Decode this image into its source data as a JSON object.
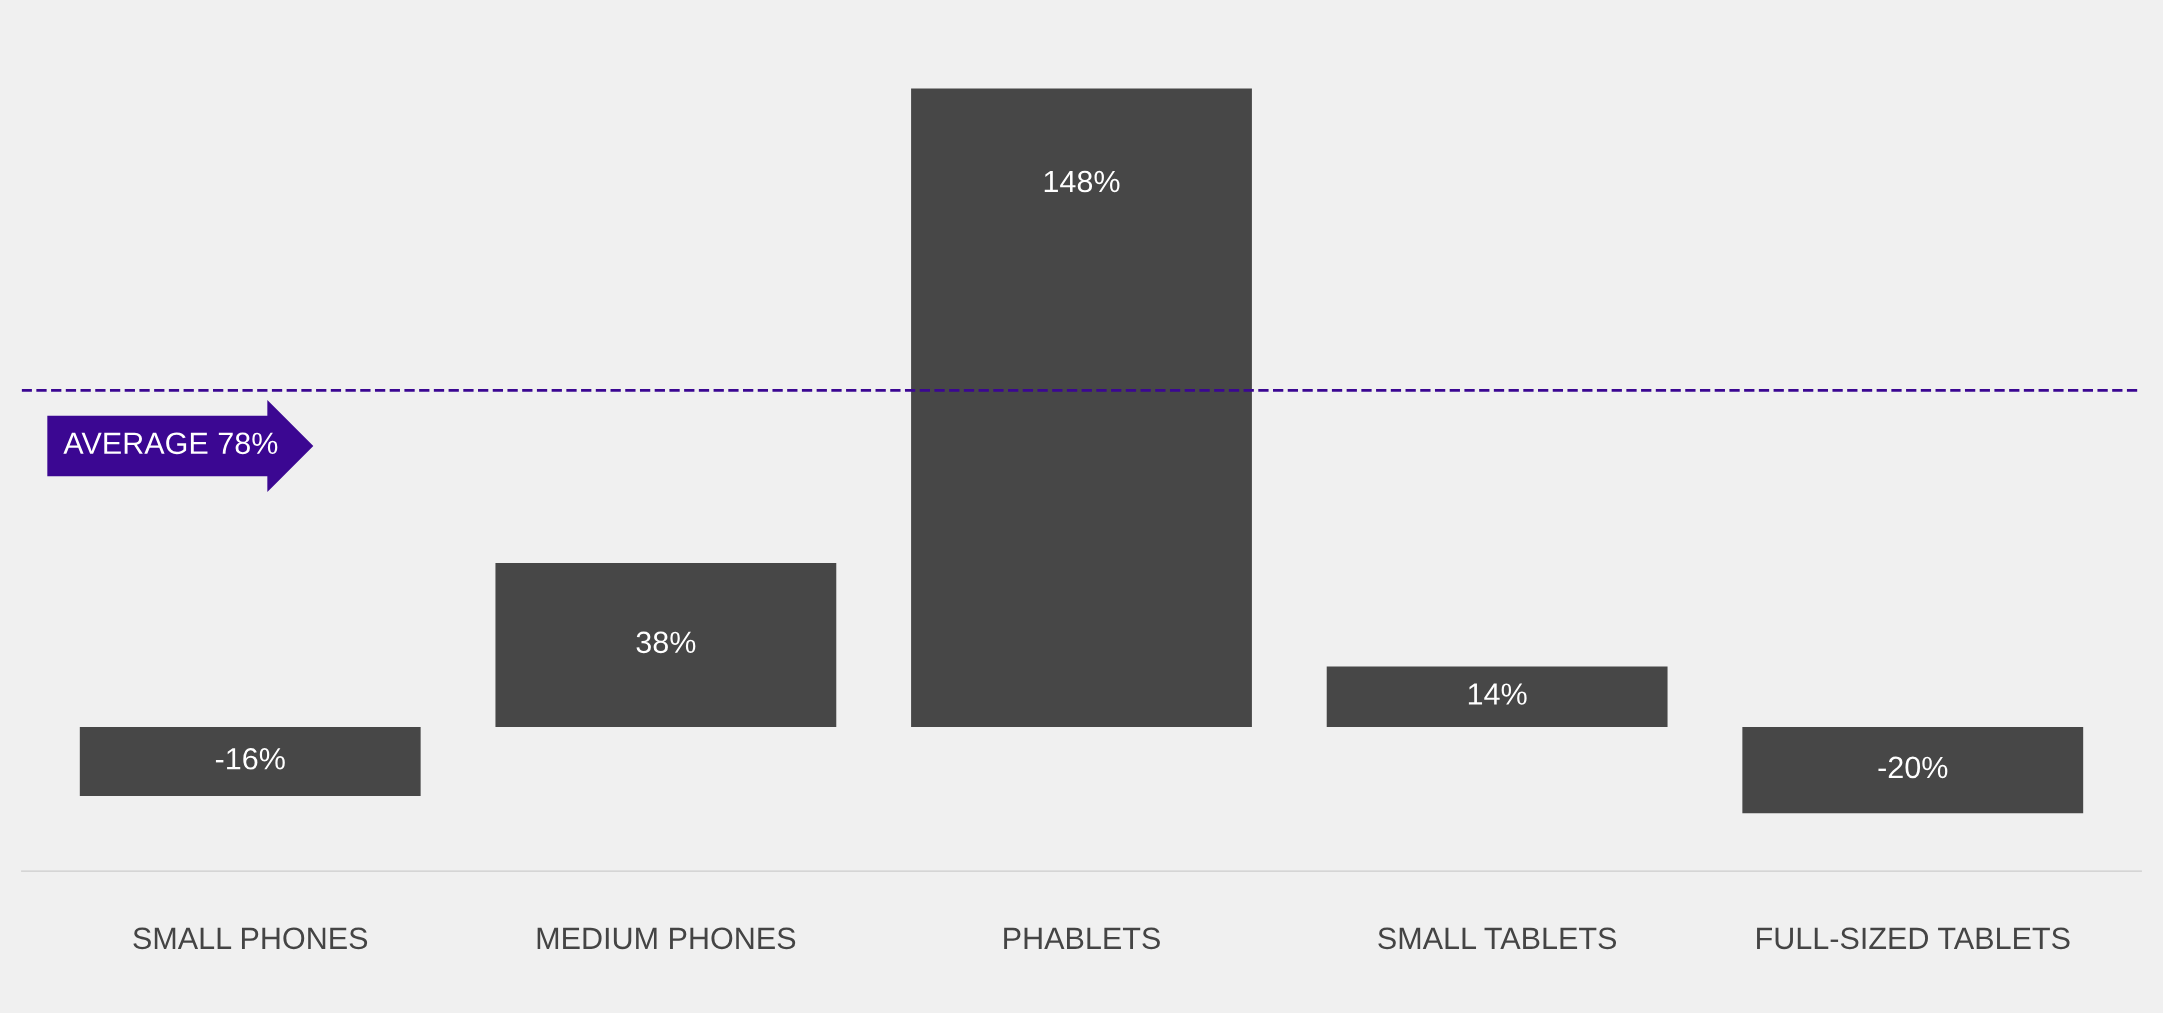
{
  "chart_data": {
    "type": "bar",
    "categories": [
      "SMALL PHONES",
      "MEDIUM PHONES",
      "PHABLETS",
      "SMALL TABLETS",
      "FULL-SIZED TABLETS"
    ],
    "values": [
      -16,
      38,
      148,
      14,
      -20
    ],
    "value_labels": [
      "-16%",
      "38%",
      "148%",
      "14%",
      "-20%"
    ],
    "color": "#474747",
    "tick_labels": "x",
    "grid": false,
    "legend": false,
    "ref_lines": [
      {
        "axis": "y",
        "value": 78,
        "label": "AVERAGE 78%",
        "color": "#3b0792",
        "line_style": "dashed"
      }
    ]
  }
}
